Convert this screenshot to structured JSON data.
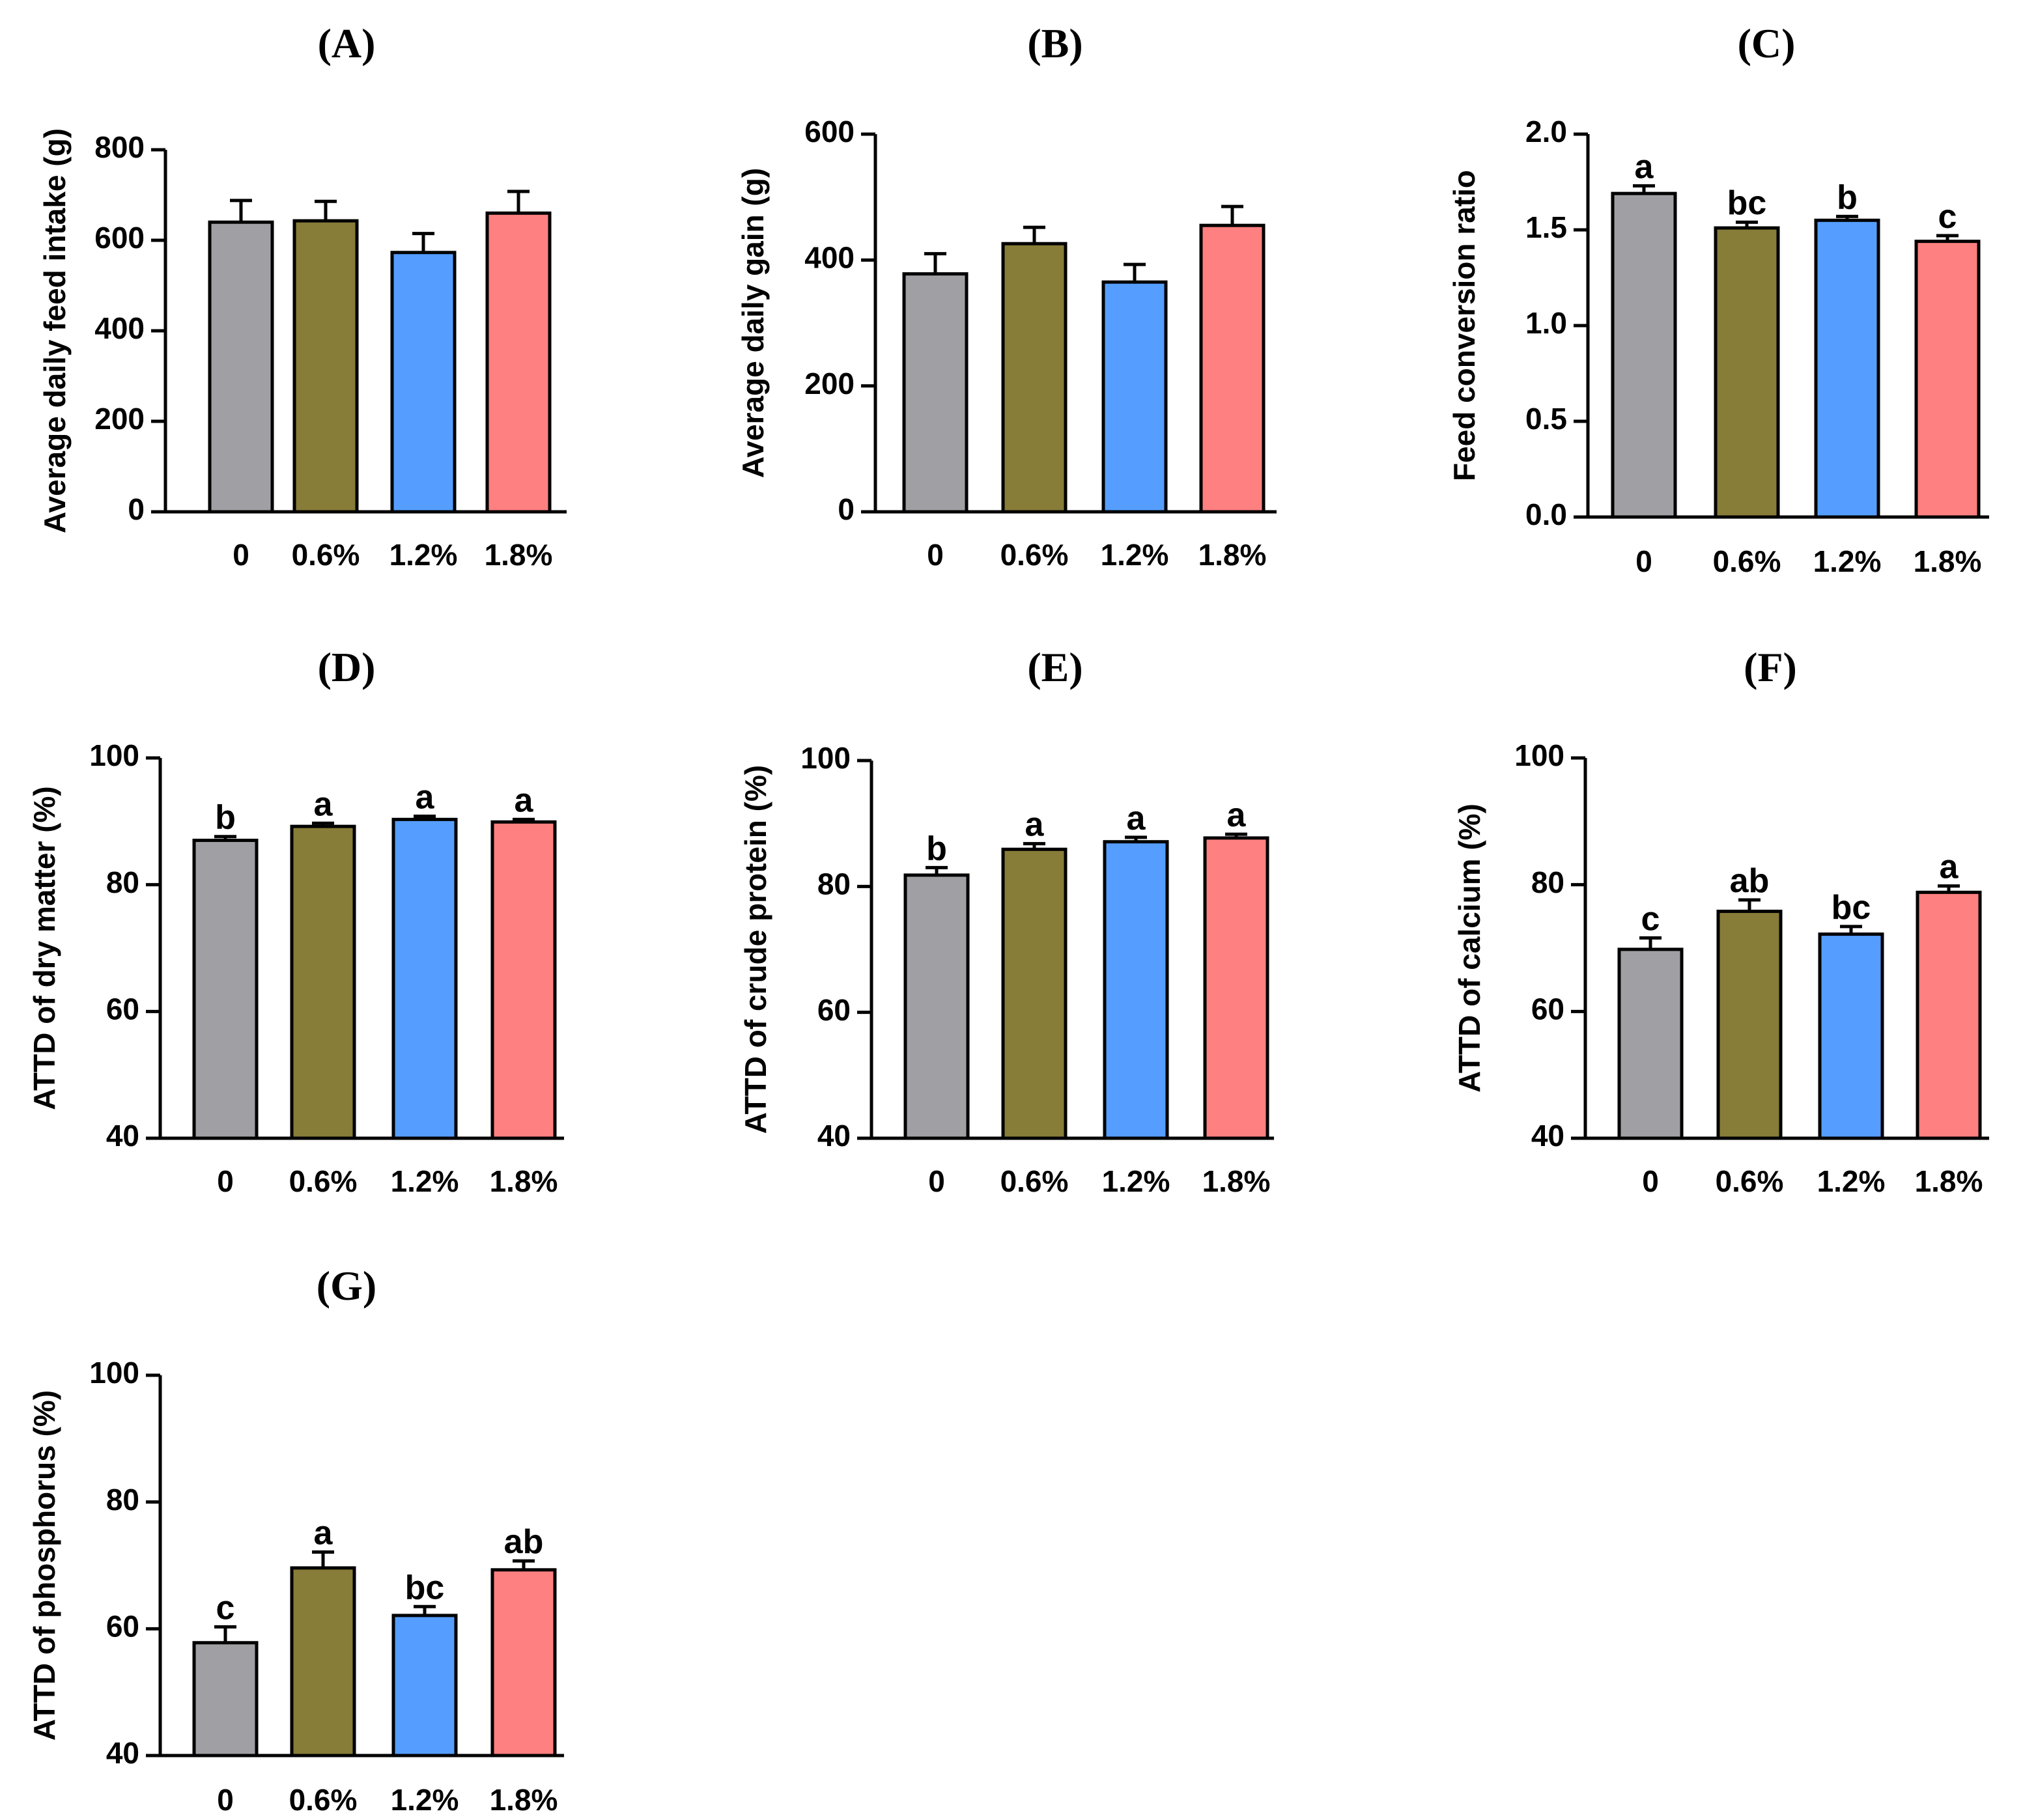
{
  "figure": {
    "background": "#ffffff"
  },
  "chart_data": [
    {
      "panel": "A",
      "panel_title": "(A)",
      "type": "bar",
      "categories": [
        "0",
        "0.6%",
        "1.2%",
        "1.8%"
      ],
      "values": [
        640,
        643,
        573,
        660
      ],
      "errors": [
        48,
        43,
        42,
        48
      ],
      "sig_letters": [],
      "ylabel": "Average daily feed intake (g)",
      "ylim": [
        0,
        800
      ],
      "yticks": [
        0,
        200,
        400,
        600,
        800
      ],
      "ytick_labels": [
        "0",
        "200",
        "400",
        "600",
        "800"
      ],
      "colors": [
        "#a0a0a4",
        "#877c38",
        "#559eff",
        "#ff8080"
      ]
    },
    {
      "panel": "B",
      "panel_title": "(B)",
      "type": "bar",
      "categories": [
        "0",
        "0.6%",
        "1.2%",
        "1.8%"
      ],
      "values": [
        378,
        426,
        365,
        455
      ],
      "errors": [
        32,
        26,
        28,
        30
      ],
      "sig_letters": [],
      "ylabel": "Average daily gain (g)",
      "ylim": [
        0,
        600
      ],
      "yticks": [
        0,
        200,
        400,
        600
      ],
      "ytick_labels": [
        "0",
        "200",
        "400",
        "600"
      ],
      "colors": [
        "#a0a0a4",
        "#877c38",
        "#559eff",
        "#ff8080"
      ]
    },
    {
      "panel": "C",
      "panel_title": "(C)",
      "type": "bar",
      "categories": [
        "0",
        "0.6%",
        "1.2%",
        "1.8%"
      ],
      "values": [
        1.69,
        1.51,
        1.55,
        1.44
      ],
      "errors": [
        0.04,
        0.03,
        0.02,
        0.03
      ],
      "sig_letters": [
        "a",
        "bc",
        "b",
        "c"
      ],
      "ylabel": "Feed conversion ratio",
      "ylim": [
        0,
        2.0
      ],
      "yticks": [
        0,
        0.5,
        1.0,
        1.5,
        2.0
      ],
      "ytick_labels": [
        "0.0",
        "0.5",
        "1.0",
        "1.5",
        "2.0"
      ],
      "colors": [
        "#a0a0a4",
        "#877c38",
        "#559eff",
        "#ff8080"
      ]
    },
    {
      "panel": "D",
      "panel_title": "(D)",
      "type": "bar",
      "categories": [
        "0",
        "0.6%",
        "1.2%",
        "1.8%"
      ],
      "values": [
        87.0,
        89.2,
        90.3,
        89.9
      ],
      "errors": [
        0.6,
        0.5,
        0.5,
        0.4
      ],
      "sig_letters": [
        "b",
        "a",
        "a",
        "a"
      ],
      "ylabel": "ATTD of dry matter (%)",
      "ylim": [
        40,
        100
      ],
      "yticks": [
        40,
        60,
        80,
        100
      ],
      "ytick_labels": [
        "40",
        "60",
        "80",
        "100"
      ],
      "colors": [
        "#a0a0a4",
        "#877c38",
        "#559eff",
        "#ff8080"
      ]
    },
    {
      "panel": "E",
      "panel_title": "(E)",
      "type": "bar",
      "categories": [
        "0",
        "0.6%",
        "1.2%",
        "1.8%"
      ],
      "values": [
        81.8,
        85.9,
        87.1,
        87.7
      ],
      "errors": [
        1.2,
        0.9,
        0.7,
        0.6
      ],
      "sig_letters": [
        "b",
        "a",
        "a",
        "a"
      ],
      "ylabel": "ATTD of crude protein (%)",
      "ylim": [
        40,
        100
      ],
      "yticks": [
        40,
        60,
        80,
        100
      ],
      "ytick_labels": [
        "40",
        "60",
        "80",
        "100"
      ],
      "colors": [
        "#a0a0a4",
        "#877c38",
        "#559eff",
        "#ff8080"
      ]
    },
    {
      "panel": "F",
      "panel_title": "(F)",
      "type": "bar",
      "categories": [
        "0",
        "0.6%",
        "1.2%",
        "1.8%"
      ],
      "values": [
        69.8,
        75.8,
        72.2,
        78.8
      ],
      "errors": [
        1.8,
        1.8,
        1.2,
        1.0
      ],
      "sig_letters": [
        "c",
        "ab",
        "bc",
        "a"
      ],
      "ylabel": "ATTD of calcium (%)",
      "ylim": [
        40,
        100
      ],
      "yticks": [
        40,
        60,
        80,
        100
      ],
      "ytick_labels": [
        "40",
        "60",
        "80",
        "100"
      ],
      "colors": [
        "#a0a0a4",
        "#877c38",
        "#559eff",
        "#ff8080"
      ]
    },
    {
      "panel": "G",
      "panel_title": "(G)",
      "type": "bar",
      "categories": [
        "0",
        "0.6%",
        "1.2%",
        "1.8%"
      ],
      "values": [
        57.8,
        69.6,
        62.1,
        69.3
      ],
      "errors": [
        2.5,
        2.5,
        1.4,
        1.4
      ],
      "sig_letters": [
        "c",
        "a",
        "bc",
        "ab"
      ],
      "ylabel": "ATTD of phosphorus (%)",
      "ylim": [
        40,
        100
      ],
      "yticks": [
        40,
        60,
        80,
        100
      ],
      "ytick_labels": [
        "40",
        "60",
        "80",
        "100"
      ],
      "colors": [
        "#a0a0a4",
        "#877c38",
        "#559eff",
        "#ff8080"
      ]
    }
  ]
}
